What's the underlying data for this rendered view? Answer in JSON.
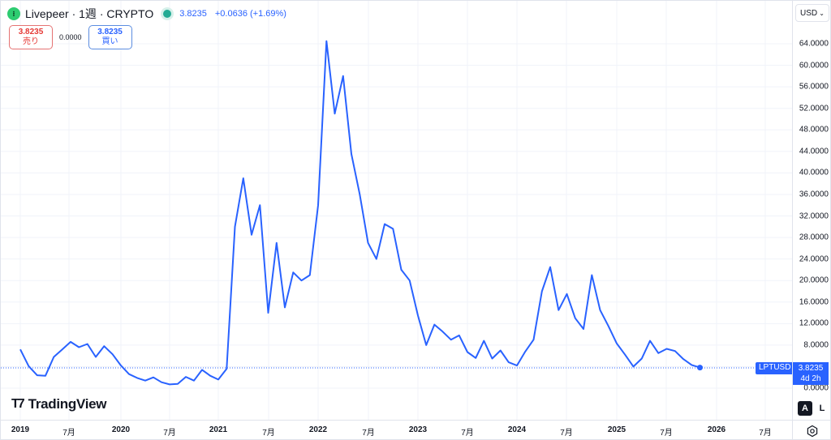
{
  "header": {
    "symbol_title": "Livepeer · 1週 · CRYPTO",
    "logo_icon": "livepeer-logo-icon",
    "last_price": "3.8235",
    "change": "+0.0636 (+1.69%)"
  },
  "trade_panel": {
    "sell_price": "3.8235",
    "sell_label": "売り",
    "spread": "0.0000",
    "buy_price": "3.8235",
    "buy_label": "買い"
  },
  "price_axis": {
    "currency": "USD",
    "labels": [
      "64.0000",
      "60.0000",
      "56.0000",
      "52.0000",
      "48.0000",
      "44.0000",
      "40.0000",
      "36.0000",
      "32.0000",
      "28.0000",
      "24.0000",
      "20.0000",
      "16.0000",
      "12.0000",
      "8.0000",
      "0.0000"
    ],
    "current_price_tag": "3.8235",
    "countdown": "4d 2h",
    "symbol_tag": "LPTUSD",
    "auto_label": "A",
    "log_label": "L"
  },
  "time_axis": {
    "labels": [
      "2019",
      "7月",
      "2020",
      "7月",
      "2021",
      "7月",
      "2022",
      "7月",
      "2023",
      "7月",
      "2024",
      "7月",
      "2025",
      "7月",
      "2026",
      "7月"
    ]
  },
  "branding": {
    "name": "TradingView"
  },
  "colors": {
    "line": "#2962ff",
    "accent": "#2962ff",
    "sell": "#e53935",
    "live": "#22ab94"
  },
  "chart_data": {
    "type": "line",
    "title": "Livepeer · 1週 · CRYPTO",
    "symbol": "LPTUSD",
    "interval": "1W",
    "xlabel": "",
    "ylabel": "USD",
    "ylim": [
      0,
      66
    ],
    "yticks": [
      0,
      8,
      12,
      16,
      20,
      24,
      28,
      32,
      36,
      40,
      44,
      48,
      52,
      56,
      60,
      64
    ],
    "xticks": [
      "2019",
      "7月",
      "2020",
      "7月",
      "2021",
      "7月",
      "2022",
      "7月",
      "2023",
      "7月",
      "2024",
      "7月",
      "2025",
      "7月",
      "2026",
      "7月"
    ],
    "grid": true,
    "last_value": 3.8235,
    "series": [
      {
        "name": "LPTUSD",
        "points": [
          [
            "2019-01",
            7.2
          ],
          [
            "2019-02",
            4.1
          ],
          [
            "2019-03",
            2.4
          ],
          [
            "2019-04",
            2.3
          ],
          [
            "2019-05",
            5.8
          ],
          [
            "2019-06",
            7.2
          ],
          [
            "2019-07",
            8.6
          ],
          [
            "2019-08",
            7.6
          ],
          [
            "2019-09",
            8.2
          ],
          [
            "2019-10",
            5.8
          ],
          [
            "2019-11",
            7.8
          ],
          [
            "2019-12",
            6.3
          ],
          [
            "2020-01",
            4.2
          ],
          [
            "2020-02",
            2.6
          ],
          [
            "2020-03",
            1.9
          ],
          [
            "2020-04",
            1.4
          ],
          [
            "2020-05",
            2.0
          ],
          [
            "2020-06",
            1.1
          ],
          [
            "2020-07",
            0.7
          ],
          [
            "2020-08",
            0.8
          ],
          [
            "2020-09",
            2.1
          ],
          [
            "2020-10",
            1.4
          ],
          [
            "2020-11",
            3.4
          ],
          [
            "2020-12",
            2.3
          ],
          [
            "2021-01",
            1.6
          ],
          [
            "2021-02",
            3.6
          ],
          [
            "2021-03",
            30.0
          ],
          [
            "2021-04",
            39.0
          ],
          [
            "2021-05",
            28.5
          ],
          [
            "2021-06",
            34.0
          ],
          [
            "2021-07",
            14.0
          ],
          [
            "2021-08",
            27.0
          ],
          [
            "2021-09",
            15.0
          ],
          [
            "2021-10",
            21.5
          ],
          [
            "2021-11",
            20.0
          ],
          [
            "2021-12",
            21.0
          ],
          [
            "2022-01",
            34.0
          ],
          [
            "2022-02",
            64.5
          ],
          [
            "2022-03",
            51.0
          ],
          [
            "2022-04",
            58.0
          ],
          [
            "2022-05",
            43.5
          ],
          [
            "2022-06",
            36.0
          ],
          [
            "2022-07",
            27.0
          ],
          [
            "2022-08",
            24.0
          ],
          [
            "2022-09",
            30.5
          ],
          [
            "2022-10",
            29.6
          ],
          [
            "2022-11",
            22.0
          ],
          [
            "2022-12",
            20.0
          ],
          [
            "2023-01",
            13.5
          ],
          [
            "2023-02",
            8.0
          ],
          [
            "2023-03",
            11.8
          ],
          [
            "2023-04",
            10.5
          ],
          [
            "2023-05",
            9.0
          ],
          [
            "2023-06",
            9.8
          ],
          [
            "2023-07",
            6.7
          ],
          [
            "2023-08",
            5.6
          ],
          [
            "2023-09",
            8.8
          ],
          [
            "2023-10",
            5.5
          ],
          [
            "2023-11",
            7.0
          ],
          [
            "2023-12",
            4.8
          ],
          [
            "2024-01",
            4.2
          ],
          [
            "2024-02",
            6.8
          ],
          [
            "2024-03",
            9.0
          ],
          [
            "2024-04",
            18.0
          ],
          [
            "2024-05",
            22.5
          ],
          [
            "2024-06",
            14.5
          ],
          [
            "2024-07",
            17.5
          ],
          [
            "2024-08",
            13.0
          ],
          [
            "2024-09",
            11.0
          ],
          [
            "2024-10",
            21.0
          ],
          [
            "2024-11",
            14.5
          ],
          [
            "2024-12",
            11.5
          ],
          [
            "2025-01",
            8.3
          ],
          [
            "2025-02",
            6.2
          ],
          [
            "2025-03",
            4.0
          ],
          [
            "2025-04",
            5.5
          ],
          [
            "2025-05",
            8.8
          ],
          [
            "2025-06",
            6.5
          ],
          [
            "2025-07",
            7.3
          ],
          [
            "2025-08",
            6.9
          ],
          [
            "2025-09",
            5.4
          ],
          [
            "2025-10",
            4.3
          ],
          [
            "2025-11",
            3.8235
          ]
        ]
      }
    ]
  }
}
